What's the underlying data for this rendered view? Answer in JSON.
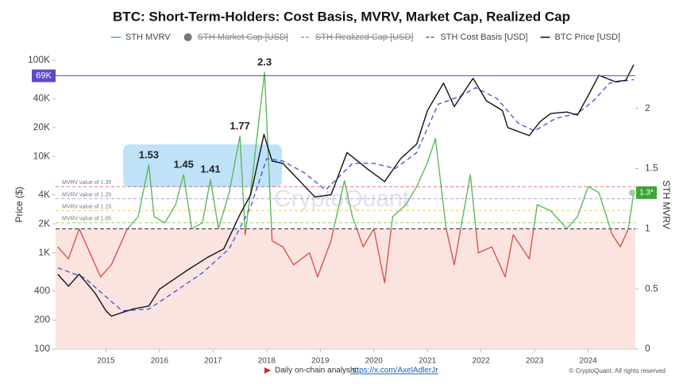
{
  "chart_data": {
    "type": "line",
    "title": "BTC: Short-Term-Holders: Cost Basis, MVRV, Market Cap, Realized Cap",
    "y_label": "Price ($)",
    "y2_label": "STH MVRV",
    "log_y": true,
    "grid": false,
    "xlim": [
      2014.06,
      2024.88
    ],
    "xticks": [
      2015,
      2016,
      2017,
      2018,
      2019,
      2020,
      2021,
      2022,
      2023,
      2024
    ],
    "ylim": [
      100,
      100000
    ],
    "yticks": [
      100,
      200,
      400,
      {
        "value": 1000,
        "label": "1K"
      },
      {
        "value": 2000,
        "label": "2K"
      },
      {
        "value": 4000,
        "label": "4K"
      },
      {
        "value": 10000,
        "label": "10K"
      },
      {
        "value": 20000,
        "label": "20K"
      },
      {
        "value": 40000,
        "label": "40K"
      },
      {
        "value": 100000,
        "label": "100K"
      }
    ],
    "y2lim": [
      0,
      2.4
    ],
    "y2ticks": [
      0,
      0.5,
      1,
      1.5,
      2
    ],
    "series": [
      {
        "name": "STH MVRV",
        "color": "#5cb85c",
        "below_color": "#d9534f",
        "axis": "y2",
        "style": "solid",
        "x": [
          2014.1,
          2014.3,
          2014.5,
          2014.7,
          2014.9,
          2015.1,
          2015.4,
          2015.6,
          2015.8,
          2015.9,
          2016.1,
          2016.3,
          2016.45,
          2016.6,
          2016.8,
          2016.95,
          2017.1,
          2017.3,
          2017.5,
          2017.6,
          2017.75,
          2017.96,
          2018.1,
          2018.3,
          2018.5,
          2018.8,
          2018.95,
          2019.2,
          2019.45,
          2019.6,
          2019.8,
          2020.0,
          2020.2,
          2020.35,
          2020.6,
          2020.8,
          2021.0,
          2021.15,
          2021.35,
          2021.5,
          2021.8,
          2021.95,
          2022.2,
          2022.45,
          2022.6,
          2022.9,
          2023.05,
          2023.3,
          2023.6,
          2023.8,
          2024.0,
          2024.2,
          2024.45,
          2024.6,
          2024.75,
          2024.85
        ],
        "values": [
          0.85,
          0.75,
          1.0,
          0.8,
          0.6,
          0.7,
          1.0,
          1.1,
          1.53,
          1.1,
          1.05,
          1.2,
          1.45,
          1.0,
          1.05,
          1.41,
          1.0,
          1.3,
          1.77,
          0.95,
          1.5,
          2.3,
          0.9,
          0.85,
          0.7,
          0.8,
          0.6,
          0.9,
          1.4,
          1.1,
          0.85,
          1.0,
          0.55,
          1.1,
          1.2,
          1.35,
          1.55,
          1.75,
          1.0,
          0.7,
          1.45,
          0.8,
          0.85,
          0.6,
          0.95,
          0.75,
          1.2,
          1.15,
          1.0,
          1.1,
          1.35,
          1.3,
          0.95,
          0.85,
          1.0,
          1.3
        ]
      },
      {
        "name": "STH Cost Basis [USD]",
        "color": "#4a5bd4",
        "axis": "y",
        "style": "dashed",
        "x": [
          2014.1,
          2014.6,
          2015.0,
          2015.3,
          2015.8,
          2016.3,
          2016.8,
          2017.3,
          2017.7,
          2018.0,
          2018.3,
          2018.7,
          2019.1,
          2019.6,
          2020.0,
          2020.4,
          2020.8,
          2021.2,
          2021.6,
          2021.9,
          2022.3,
          2022.7,
          2023.0,
          2023.4,
          2023.8,
          2024.1,
          2024.4,
          2024.85
        ],
        "values": [
          700,
          550,
          350,
          250,
          260,
          400,
          620,
          1100,
          3000,
          9500,
          9000,
          6800,
          4500,
          8500,
          8500,
          7500,
          11000,
          35000,
          42000,
          52000,
          40000,
          22000,
          18500,
          25000,
          28000,
          38000,
          58000,
          63000
        ]
      },
      {
        "name": "BTC Price [USD]",
        "color": "#111111",
        "axis": "y",
        "style": "solid",
        "x": [
          2014.1,
          2014.3,
          2014.5,
          2014.8,
          2015.0,
          2015.1,
          2015.5,
          2015.8,
          2016.0,
          2016.5,
          2016.9,
          2017.2,
          2017.5,
          2017.7,
          2017.95,
          2018.1,
          2018.3,
          2018.5,
          2018.9,
          2019.2,
          2019.5,
          2019.9,
          2020.2,
          2020.5,
          2020.8,
          2021.0,
          2021.3,
          2021.5,
          2021.85,
          2022.1,
          2022.4,
          2022.5,
          2022.9,
          2023.1,
          2023.3,
          2023.6,
          2023.8,
          2024.0,
          2024.2,
          2024.5,
          2024.7,
          2024.85
        ],
        "values": [
          600,
          450,
          600,
          380,
          250,
          220,
          260,
          280,
          420,
          650,
          900,
          1100,
          2500,
          4000,
          17000,
          9000,
          8500,
          6500,
          3800,
          4000,
          11000,
          7300,
          5500,
          9500,
          13500,
          30000,
          58000,
          33000,
          65000,
          38000,
          30000,
          20000,
          16500,
          23000,
          28000,
          29000,
          27000,
          43000,
          70000,
          60000,
          62000,
          90000
        ]
      }
    ],
    "hidden_series": [
      {
        "name": "STH Market Cap [USD]",
        "color": "#777777"
      },
      {
        "name": "STH Realized Cap [USD]",
        "color": "#999999"
      }
    ],
    "price_marker": {
      "value": 69000,
      "label": "69K",
      "color": "#5b4bc4"
    },
    "current_mvrv": {
      "value": 1.3,
      "label": "1.3*"
    },
    "mvrv_levels": [
      {
        "value": 1.35,
        "label": "MVRV value of 1.35",
        "color": "#e57373"
      },
      {
        "value": 1.25,
        "label": "MVRV value of 1.25",
        "color": "#b39ddb"
      },
      {
        "value": 1.15,
        "label": "MVRV value of 1.15",
        "color": "#e6d86a"
      },
      {
        "value": 1.05,
        "label": "MVRV value of 1.05",
        "color": "#9ccc65"
      }
    ],
    "baseline": 1,
    "peaks": [
      {
        "x": 2017.96,
        "value": 2.3
      },
      {
        "x": 2017.5,
        "value": 1.77
      },
      {
        "x": 2015.8,
        "value": 1.53
      },
      {
        "x": 2016.45,
        "value": 1.45
      },
      {
        "x": 2016.95,
        "value": 1.41
      }
    ],
    "watermark": "CryptoQuant",
    "footer_text": "Daily on-chain analysis:",
    "footer_link": "https://x.com/AxelAdlerJr",
    "copyright": "© CryptoQuant. All rights reserved"
  }
}
